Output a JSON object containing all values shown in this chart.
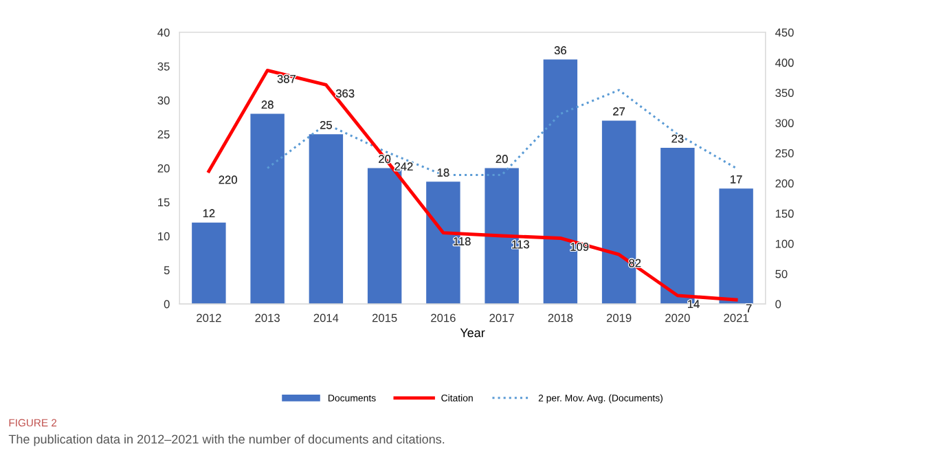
{
  "chart_data": {
    "type": "bar",
    "xlabel": "Year",
    "categories": [
      "2012",
      "2013",
      "2014",
      "2015",
      "2016",
      "2017",
      "2018",
      "2019",
      "2020",
      "2021"
    ],
    "series": [
      {
        "name": "Documents",
        "color": "#4472c4",
        "values": [
          12,
          28,
          25,
          20,
          18,
          20,
          36,
          27,
          23,
          17
        ],
        "value_labels": [
          "12",
          "28",
          "25",
          "20",
          "18",
          "20",
          "36",
          "27",
          "23",
          "17"
        ]
      },
      {
        "name": "Citation",
        "type": "line",
        "axis": "y2",
        "color": "#ff0000",
        "values": [
          220,
          387,
          363,
          242,
          118,
          113,
          109,
          82,
          14,
          7
        ],
        "value_labels": [
          "220",
          "387",
          "363",
          "242",
          "118",
          "113",
          "109",
          "82",
          "14",
          "7"
        ]
      },
      {
        "name": "2 per. Mov. Avg. (Documents)",
        "type": "line",
        "color": "#5b9bd5",
        "line_style": "dotted",
        "values": [
          null,
          20,
          26.5,
          22.5,
          19,
          19,
          28,
          31.5,
          25,
          20
        ]
      }
    ],
    "ylim": [
      0,
      40
    ],
    "yticks": [
      0,
      5,
      10,
      15,
      20,
      25,
      30,
      35,
      40
    ],
    "y2lim": [
      0,
      450
    ],
    "y2ticks": [
      0,
      50,
      100,
      150,
      200,
      250,
      300,
      350,
      400,
      450
    ],
    "grid": false,
    "legend": "bottom",
    "annotations": [
      "FIGURE 2",
      "The publication data in 2012–2021 with the number of documents and citations."
    ]
  }
}
